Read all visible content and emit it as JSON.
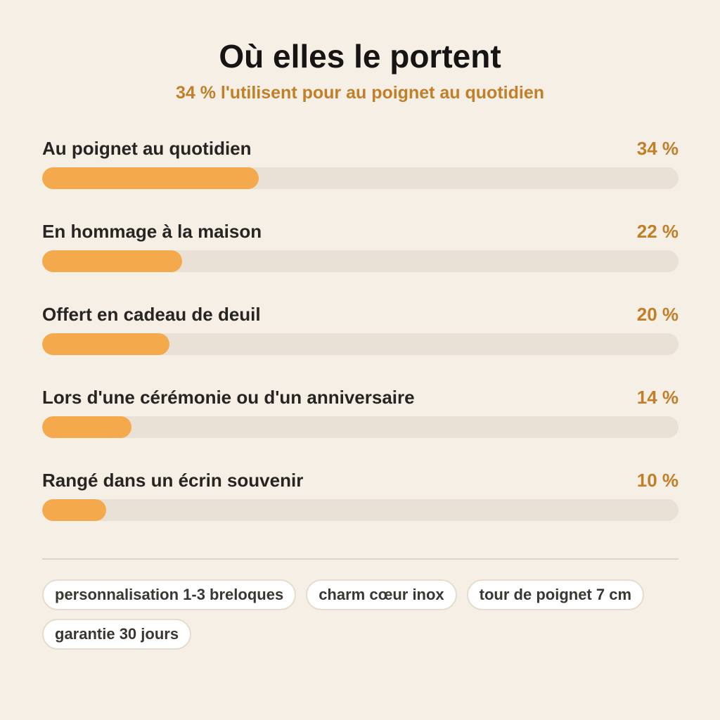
{
  "header": {
    "title": "Où elles le portent",
    "subtitle": "34 % l'utilisent pour au poignet au quotidien"
  },
  "colors": {
    "background": "#f6efe6",
    "bar_fill": "#f4a94d",
    "bar_track": "#e9e1d6",
    "accent_text": "#c07f28",
    "tag_background": "#ffffff"
  },
  "chart_data": {
    "type": "bar",
    "orientation": "horizontal",
    "title": "Où elles le portent",
    "subtitle": "34 % l'utilisent pour au poignet au quotidien",
    "categories": [
      "Au poignet au quotidien",
      "En hommage à la maison",
      "Offert en cadeau de deuil",
      "Lors d'une cérémonie ou d'un anniversaire",
      "Rangé dans un écrin souvenir"
    ],
    "values": [
      34,
      22,
      20,
      14,
      10
    ],
    "value_labels": [
      "34 %",
      "22 %",
      "20 %",
      "14 %",
      "10 %"
    ],
    "xlim": [
      0,
      100
    ],
    "grid": false
  },
  "tags": [
    "personnalisation 1-3 breloques",
    "charm cœur inox",
    "tour de poignet 7 cm",
    "garantie 30 jours"
  ]
}
